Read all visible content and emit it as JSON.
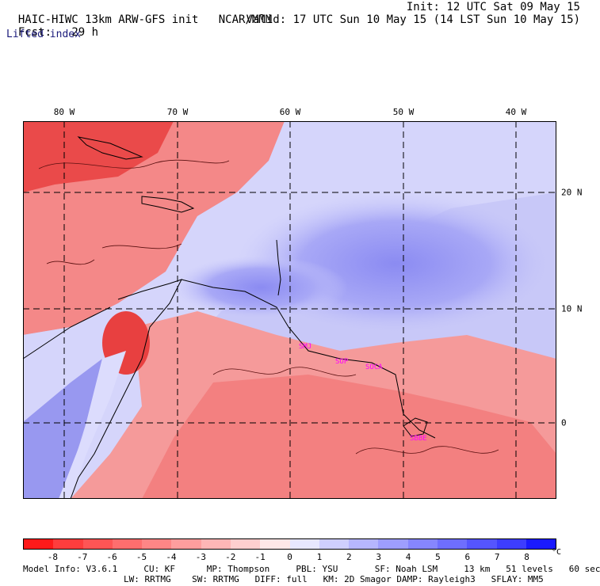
{
  "header": {
    "model_title": "HAIC-HIWC 13km ARW-GFS init",
    "agency": "NCAR/MMM",
    "init": "Init: 12 UTC Sat 09 May 15",
    "fcst_label": "Fcst:",
    "fcst_value": "29 h",
    "valid": "Valid: 17 UTC Sun 10 May 15 (14 LST Sun 10 May 15)",
    "variable": "Lifted index"
  },
  "map": {
    "longitude_labels": [
      "80 W",
      "70 W",
      "60 W",
      "50 W",
      "40 W"
    ],
    "latitude_labels": [
      "20 N",
      "10 N",
      "0"
    ],
    "station_labels": [
      "SMJ",
      "SOP",
      "SOCA",
      "SBBE"
    ],
    "station_color": "#ff00ff"
  },
  "colorbar": {
    "colors": [
      "#ff1a1a",
      "#ff3d3d",
      "#ff5555",
      "#ff6e6e",
      "#ff8686",
      "#ff9e9e",
      "#ffb6b6",
      "#ffcfcf",
      "#ffe8e8",
      "#e8e8ff",
      "#cfcfff",
      "#b6b6ff",
      "#9e9eff",
      "#8686ff",
      "#6e6eff",
      "#5555ff",
      "#3d3dff",
      "#1a1aff"
    ],
    "labels": [
      "-8",
      "-7",
      "-6",
      "-5",
      "-4",
      "-3",
      "-2",
      "-1",
      "0",
      "1",
      "2",
      "3",
      "4",
      "5",
      "6",
      "7",
      "8"
    ],
    "unit": "°C"
  },
  "footer": {
    "line1": "Model Info: V3.6.1     CU: KF      MP: Thompson     PBL: YSU       SF: Noah LSM     13 km   51 levels   60 sec",
    "line2": "LW: RRTMG    SW: RRTMG   DIFF: full   KM: 2D Smagor DAMP: Rayleigh3   SFLAY: MM5"
  }
}
